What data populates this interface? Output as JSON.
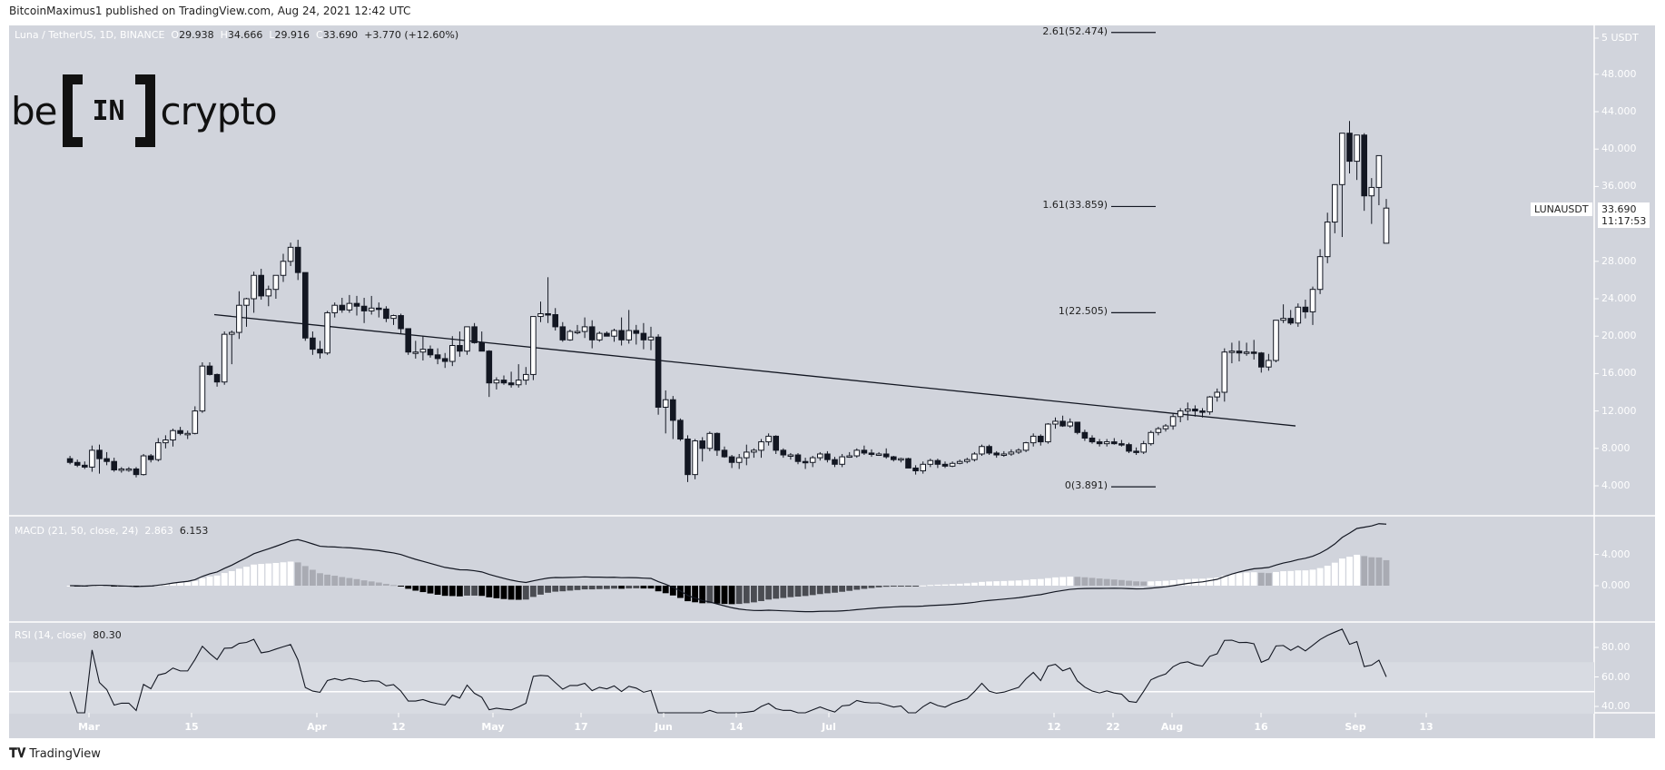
{
  "header": {
    "published": "BitcoinMaximus1 published on TradingView.com, Aug 24, 2021 12:42 UTC"
  },
  "symbol_legend": {
    "name": "Luna / TetherUS, 1D, BINANCE",
    "o_label": "O",
    "o": "29.938",
    "h_label": "H",
    "h": "34.666",
    "l_label": "L",
    "l": "29.916",
    "c_label": "C",
    "c": "33.690",
    "change": "+3.770 (+12.60%)"
  },
  "logo": {
    "left": "be",
    "center": "IN",
    "right": "crypto"
  },
  "price_tag": {
    "symbol": "LUNAUSDT",
    "price": "33.690",
    "countdown": "11:17:53"
  },
  "price_axis": {
    "currency_label": "5 USDT",
    "ticks": [
      "48.000",
      "44.000",
      "40.000",
      "36.000",
      "28.000",
      "24.000",
      "20.000",
      "16.000",
      "12.000",
      "8.000",
      "4.000"
    ]
  },
  "macd": {
    "label": "MACD (21, 50, close, 24)",
    "hist_value": "2.863",
    "macd_value": "6.153",
    "ticks": [
      "4.000",
      "0.000"
    ]
  },
  "rsi": {
    "label": "RSI (14, close)",
    "value": "80.30",
    "ticks": [
      "80.00",
      "60.00",
      "40.00"
    ]
  },
  "x_axis": {
    "labels": [
      "Mar",
      "15",
      "Apr",
      "12",
      "May",
      "17",
      "Jun",
      "14",
      "Jul",
      "12",
      "22",
      "Aug",
      "16",
      "Sep",
      "13"
    ]
  },
  "fib_levels": [
    {
      "label": "2.61(52.474)",
      "ratio": 2.61,
      "price": 52.474
    },
    {
      "label": "1.61(33.859)",
      "ratio": 1.61,
      "price": 33.859
    },
    {
      "label": "1(22.505)",
      "ratio": 1,
      "price": 22.505
    },
    {
      "label": "0(3.891)",
      "ratio": 0,
      "price": 3.891
    }
  ],
  "footer": {
    "brand": "TradingView"
  },
  "colors": {
    "background": "#d1d4dc",
    "rsi_band": "#d8dbe2",
    "bull_candle": "#ffffff",
    "bear_candle": "#131722",
    "line": "#131722",
    "hist_light": "#ffffff",
    "hist_grey": "#a9abb3",
    "hist_dark": "#000000",
    "hist_darkgrey": "#4a4c52"
  },
  "chart_data": {
    "type": "candlestick",
    "title": "Luna / TetherUS, 1D, BINANCE",
    "ylabel": "USDT",
    "ylim": [
      0,
      53
    ],
    "x_tick_labels": [
      "Mar",
      "15",
      "Apr",
      "12",
      "May",
      "17",
      "Jun",
      "14",
      "Jul",
      "12",
      "22",
      "Aug",
      "16",
      "Sep",
      "13"
    ],
    "trendline": {
      "from": {
        "date": "Mar 19",
        "price": 22.3
      },
      "to": {
        "date": "Aug 13",
        "price": 10.4
      }
    },
    "fib_extension": [
      3.891,
      22.505,
      33.859,
      52.474
    ],
    "ohlc": [
      [
        6.9,
        7.2,
        6.3,
        6.5
      ],
      [
        6.5,
        6.8,
        6.0,
        6.2
      ],
      [
        6.2,
        6.6,
        5.8,
        6.0
      ],
      [
        6.0,
        8.3,
        5.5,
        7.8
      ],
      [
        7.8,
        8.4,
        5.3,
        6.9
      ],
      [
        6.9,
        7.6,
        6.2,
        6.6
      ],
      [
        6.6,
        7.0,
        5.5,
        5.7
      ],
      [
        5.7,
        6.0,
        5.4,
        5.8
      ],
      [
        5.8,
        6.0,
        5.5,
        5.8
      ],
      [
        5.8,
        6.0,
        4.9,
        5.2
      ],
      [
        5.2,
        7.4,
        5.1,
        7.2
      ],
      [
        7.2,
        7.4,
        6.5,
        6.8
      ],
      [
        6.8,
        9.1,
        6.6,
        8.6
      ],
      [
        8.6,
        9.4,
        8.0,
        8.9
      ],
      [
        8.9,
        10.1,
        8.2,
        9.9
      ],
      [
        9.9,
        10.3,
        9.4,
        9.6
      ],
      [
        9.6,
        9.9,
        9.0,
        9.6
      ],
      [
        9.6,
        12.5,
        9.5,
        12.0
      ],
      [
        12.0,
        17.2,
        11.8,
        16.8
      ],
      [
        16.8,
        17.2,
        15.8,
        15.9
      ],
      [
        15.9,
        16.0,
        14.6,
        15.1
      ],
      [
        15.1,
        20.5,
        14.8,
        20.2
      ],
      [
        20.2,
        20.6,
        17.0,
        20.4
      ],
      [
        20.4,
        24.8,
        19.7,
        23.3
      ],
      [
        23.3,
        24.1,
        21.0,
        24.0
      ],
      [
        24.0,
        26.9,
        22.5,
        26.5
      ],
      [
        26.5,
        27.2,
        23.9,
        24.3
      ],
      [
        24.3,
        25.4,
        23.2,
        25.0
      ],
      [
        25.0,
        26.5,
        24.0,
        26.5
      ],
      [
        26.5,
        28.8,
        25.8,
        28.0
      ],
      [
        28.0,
        30.0,
        27.5,
        29.5
      ],
      [
        29.5,
        30.3,
        26.0,
        26.8
      ],
      [
        26.8,
        26.8,
        19.5,
        19.8
      ],
      [
        19.8,
        20.5,
        18.0,
        18.6
      ],
      [
        18.6,
        19.5,
        17.6,
        18.2
      ],
      [
        18.2,
        22.7,
        18.0,
        22.5
      ],
      [
        22.5,
        23.6,
        22.0,
        23.3
      ],
      [
        23.3,
        24.1,
        22.5,
        22.8
      ],
      [
        22.8,
        24.4,
        22.5,
        23.5
      ],
      [
        23.5,
        24.3,
        22.2,
        23.2
      ],
      [
        23.2,
        24.1,
        21.4,
        22.7
      ],
      [
        22.7,
        24.3,
        22.3,
        23.0
      ],
      [
        23.0,
        23.6,
        22.0,
        22.9
      ],
      [
        22.9,
        23.2,
        21.5,
        21.9
      ],
      [
        21.9,
        22.3,
        21.2,
        22.2
      ],
      [
        22.2,
        22.4,
        20.3,
        20.8
      ],
      [
        20.8,
        20.8,
        18.0,
        18.3
      ],
      [
        18.3,
        19.5,
        17.6,
        18.3
      ],
      [
        18.3,
        20.0,
        17.4,
        18.6
      ],
      [
        18.6,
        19.0,
        17.7,
        18.0
      ],
      [
        18.0,
        18.7,
        17.0,
        17.6
      ],
      [
        17.6,
        18.2,
        16.6,
        17.3
      ],
      [
        17.3,
        20.0,
        16.8,
        19.0
      ],
      [
        19.0,
        20.5,
        17.8,
        18.4
      ],
      [
        18.4,
        21.0,
        18.0,
        21.0
      ],
      [
        21.0,
        21.4,
        19.2,
        19.3
      ],
      [
        19.3,
        20.5,
        18.6,
        18.4
      ],
      [
        18.4,
        18.5,
        13.5,
        15.0
      ],
      [
        15.0,
        15.6,
        14.3,
        15.3
      ],
      [
        15.3,
        15.8,
        14.8,
        15.0
      ],
      [
        15.0,
        16.2,
        14.5,
        14.8
      ],
      [
        14.8,
        17.0,
        14.5,
        15.3
      ],
      [
        15.3,
        16.7,
        14.8,
        15.9
      ],
      [
        15.9,
        19.5,
        15.3,
        22.1
      ],
      [
        22.1,
        23.7,
        21.5,
        22.4
      ],
      [
        22.4,
        26.3,
        21.4,
        22.3
      ],
      [
        22.3,
        23.0,
        20.6,
        21.0
      ],
      [
        21.0,
        21.5,
        19.4,
        19.6
      ],
      [
        19.6,
        20.7,
        19.5,
        20.5
      ],
      [
        20.5,
        21.2,
        20.2,
        20.5
      ],
      [
        20.5,
        22.0,
        19.8,
        21.0
      ],
      [
        21.0,
        21.7,
        18.7,
        19.6
      ],
      [
        19.6,
        20.5,
        19.4,
        20.3
      ],
      [
        20.3,
        20.5,
        20.0,
        20.0
      ],
      [
        20.0,
        20.8,
        19.4,
        20.6
      ],
      [
        20.6,
        22.0,
        19.0,
        19.6
      ],
      [
        19.6,
        22.8,
        19.2,
        20.6
      ],
      [
        20.6,
        21.2,
        19.1,
        20.3
      ],
      [
        20.3,
        21.4,
        18.6,
        19.6
      ],
      [
        19.6,
        21.0,
        18.5,
        19.9
      ],
      [
        19.9,
        20.2,
        11.6,
        12.4
      ],
      [
        12.4,
        14.2,
        9.6,
        13.2
      ],
      [
        13.2,
        13.6,
        9.0,
        11.0
      ],
      [
        11.0,
        11.2,
        8.8,
        9.0
      ],
      [
        9.0,
        9.4,
        4.4,
        5.2
      ],
      [
        5.2,
        9.0,
        4.7,
        8.8
      ],
      [
        8.8,
        9.2,
        6.6,
        8.0
      ],
      [
        8.0,
        9.8,
        7.7,
        9.6
      ],
      [
        9.6,
        9.7,
        7.2,
        7.8
      ],
      [
        7.8,
        8.2,
        7.0,
        7.1
      ],
      [
        7.1,
        7.3,
        5.9,
        6.5
      ],
      [
        6.5,
        7.4,
        5.8,
        7.0
      ],
      [
        7.0,
        8.4,
        6.2,
        7.6
      ],
      [
        7.6,
        8.0,
        7.0,
        7.8
      ],
      [
        7.8,
        9.0,
        7.0,
        8.7
      ],
      [
        8.7,
        9.6,
        8.3,
        9.3
      ],
      [
        9.3,
        9.4,
        7.4,
        7.8
      ],
      [
        7.8,
        8.0,
        7.0,
        7.3
      ],
      [
        7.3,
        7.5,
        6.8,
        7.3
      ],
      [
        7.3,
        7.5,
        6.3,
        6.6
      ],
      [
        6.6,
        7.0,
        5.8,
        6.5
      ],
      [
        6.5,
        7.2,
        6.0,
        7.0
      ],
      [
        7.0,
        7.6,
        6.7,
        7.4
      ],
      [
        7.4,
        7.7,
        6.5,
        6.8
      ],
      [
        6.8,
        7.1,
        6.0,
        6.3
      ],
      [
        6.3,
        7.4,
        6.0,
        7.1
      ],
      [
        7.1,
        7.6,
        7.0,
        7.2
      ],
      [
        7.2,
        8.0,
        7.0,
        7.8
      ],
      [
        7.8,
        8.3,
        7.3,
        7.5
      ],
      [
        7.5,
        7.9,
        7.1,
        7.4
      ],
      [
        7.4,
        7.6,
        7.2,
        7.4
      ],
      [
        7.4,
        8.0,
        6.9,
        7.1
      ],
      [
        7.1,
        7.2,
        6.6,
        6.8
      ],
      [
        6.8,
        7.0,
        6.5,
        6.9
      ],
      [
        6.9,
        7.0,
        5.9,
        5.9
      ],
      [
        5.9,
        6.2,
        5.2,
        5.6
      ],
      [
        5.6,
        6.6,
        5.3,
        6.3
      ],
      [
        6.3,
        6.9,
        6.0,
        6.7
      ],
      [
        6.7,
        6.9,
        5.9,
        6.3
      ],
      [
        6.3,
        6.6,
        5.9,
        6.1
      ],
      [
        6.1,
        6.6,
        6.0,
        6.4
      ],
      [
        6.4,
        6.8,
        6.3,
        6.6
      ],
      [
        6.6,
        7.0,
        6.4,
        6.8
      ],
      [
        6.8,
        7.6,
        6.6,
        7.4
      ],
      [
        7.4,
        8.4,
        7.2,
        8.2
      ],
      [
        8.2,
        8.4,
        7.3,
        7.5
      ],
      [
        7.5,
        7.7,
        7.0,
        7.3
      ],
      [
        7.3,
        7.7,
        7.1,
        7.4
      ],
      [
        7.4,
        7.9,
        7.2,
        7.6
      ],
      [
        7.6,
        8.0,
        7.4,
        7.8
      ],
      [
        7.8,
        8.7,
        7.6,
        8.6
      ],
      [
        8.6,
        9.6,
        8.2,
        9.3
      ],
      [
        9.3,
        9.5,
        8.3,
        8.7
      ],
      [
        8.7,
        10.7,
        8.5,
        10.6
      ],
      [
        10.6,
        11.3,
        10.1,
        10.9
      ],
      [
        10.9,
        11.5,
        10.3,
        10.4
      ],
      [
        10.4,
        11.2,
        10.2,
        10.8
      ],
      [
        10.8,
        10.8,
        9.5,
        9.7
      ],
      [
        9.7,
        10.0,
        8.8,
        9.1
      ],
      [
        9.1,
        9.4,
        8.5,
        8.7
      ],
      [
        8.7,
        9.0,
        8.2,
        8.5
      ],
      [
        8.5,
        9.0,
        8.2,
        8.7
      ],
      [
        8.7,
        9.1,
        8.4,
        8.5
      ],
      [
        8.5,
        8.9,
        8.2,
        8.4
      ],
      [
        8.4,
        8.6,
        7.5,
        7.7
      ],
      [
        7.7,
        8.1,
        7.3,
        7.6
      ],
      [
        7.6,
        8.8,
        7.4,
        8.5
      ],
      [
        8.5,
        9.9,
        8.3,
        9.7
      ],
      [
        9.7,
        10.3,
        9.4,
        10.1
      ],
      [
        10.1,
        10.6,
        9.8,
        10.4
      ],
      [
        10.4,
        11.7,
        10.0,
        11.4
      ],
      [
        11.4,
        12.3,
        10.8,
        12.0
      ],
      [
        12.0,
        12.9,
        11.0,
        12.2
      ],
      [
        12.2,
        12.6,
        11.4,
        12.0
      ],
      [
        12.0,
        12.3,
        11.3,
        11.9
      ],
      [
        11.9,
        13.6,
        11.6,
        13.5
      ],
      [
        13.5,
        14.4,
        13.0,
        14.0
      ],
      [
        14.0,
        18.7,
        13.0,
        18.3
      ],
      [
        18.3,
        19.3,
        17.1,
        18.4
      ],
      [
        18.4,
        19.5,
        17.3,
        18.2
      ],
      [
        18.2,
        19.3,
        17.9,
        18.3
      ],
      [
        18.3,
        19.6,
        17.5,
        18.2
      ],
      [
        18.2,
        18.3,
        16.1,
        16.7
      ],
      [
        16.7,
        18.1,
        16.3,
        17.4
      ],
      [
        17.4,
        21.5,
        17.2,
        21.7
      ],
      [
        21.7,
        23.4,
        21.4,
        21.9
      ],
      [
        21.9,
        22.8,
        21.2,
        21.4
      ],
      [
        21.4,
        23.5,
        21.0,
        23.1
      ],
      [
        23.1,
        23.9,
        21.9,
        22.6
      ],
      [
        22.6,
        25.3,
        21.2,
        25.0
      ],
      [
        25.0,
        29.3,
        24.5,
        28.5
      ],
      [
        28.5,
        33.2,
        27.8,
        32.2
      ],
      [
        32.2,
        35.8,
        31.0,
        36.2
      ],
      [
        36.2,
        38.3,
        30.6,
        41.7
      ],
      [
        41.7,
        43.0,
        37.4,
        38.7
      ],
      [
        38.7,
        41.3,
        36.7,
        41.5
      ],
      [
        41.5,
        41.7,
        33.4,
        35.0
      ],
      [
        35.0,
        36.9,
        32.0,
        35.9
      ],
      [
        35.9,
        39.1,
        34.0,
        39.3
      ],
      [
        29.938,
        34.666,
        29.916,
        33.69
      ]
    ]
  }
}
